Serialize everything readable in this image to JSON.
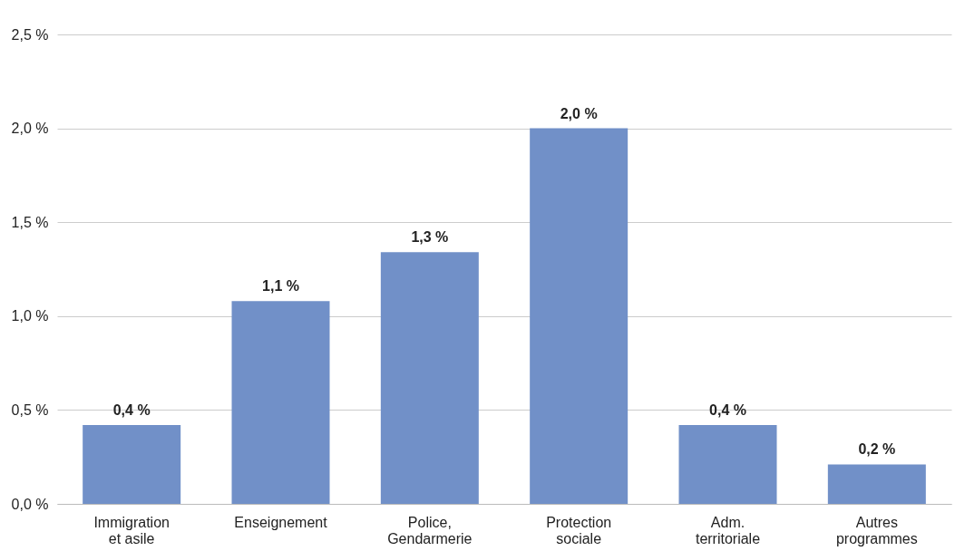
{
  "chart_data": {
    "type": "bar",
    "categories": [
      "Immigration\net asile",
      "Enseignement",
      "Police,\nGendarmerie",
      "Protection\nsociale",
      "Adm.\nterritoriale",
      "Autres\nprogrammes"
    ],
    "values": [
      0.42,
      1.08,
      1.34,
      2.0,
      0.42,
      0.21
    ],
    "value_labels": [
      "0,4 %",
      "1,1 %",
      "1,3 %",
      "2,0 %",
      "0,4 %",
      "0,2 %"
    ],
    "color": "#7190c8",
    "ylim": [
      0,
      2.5
    ],
    "yticks": [
      {
        "value": 0,
        "label": "0,0 %"
      },
      {
        "value": 0.5,
        "label": "0,5 %"
      },
      {
        "value": 1.0,
        "label": "1,0 %"
      },
      {
        "value": 1.5,
        "label": "1,5 %"
      },
      {
        "value": 2.0,
        "label": "2,0 %"
      },
      {
        "value": 2.5,
        "label": "2,5 %"
      }
    ],
    "grid": "y"
  }
}
